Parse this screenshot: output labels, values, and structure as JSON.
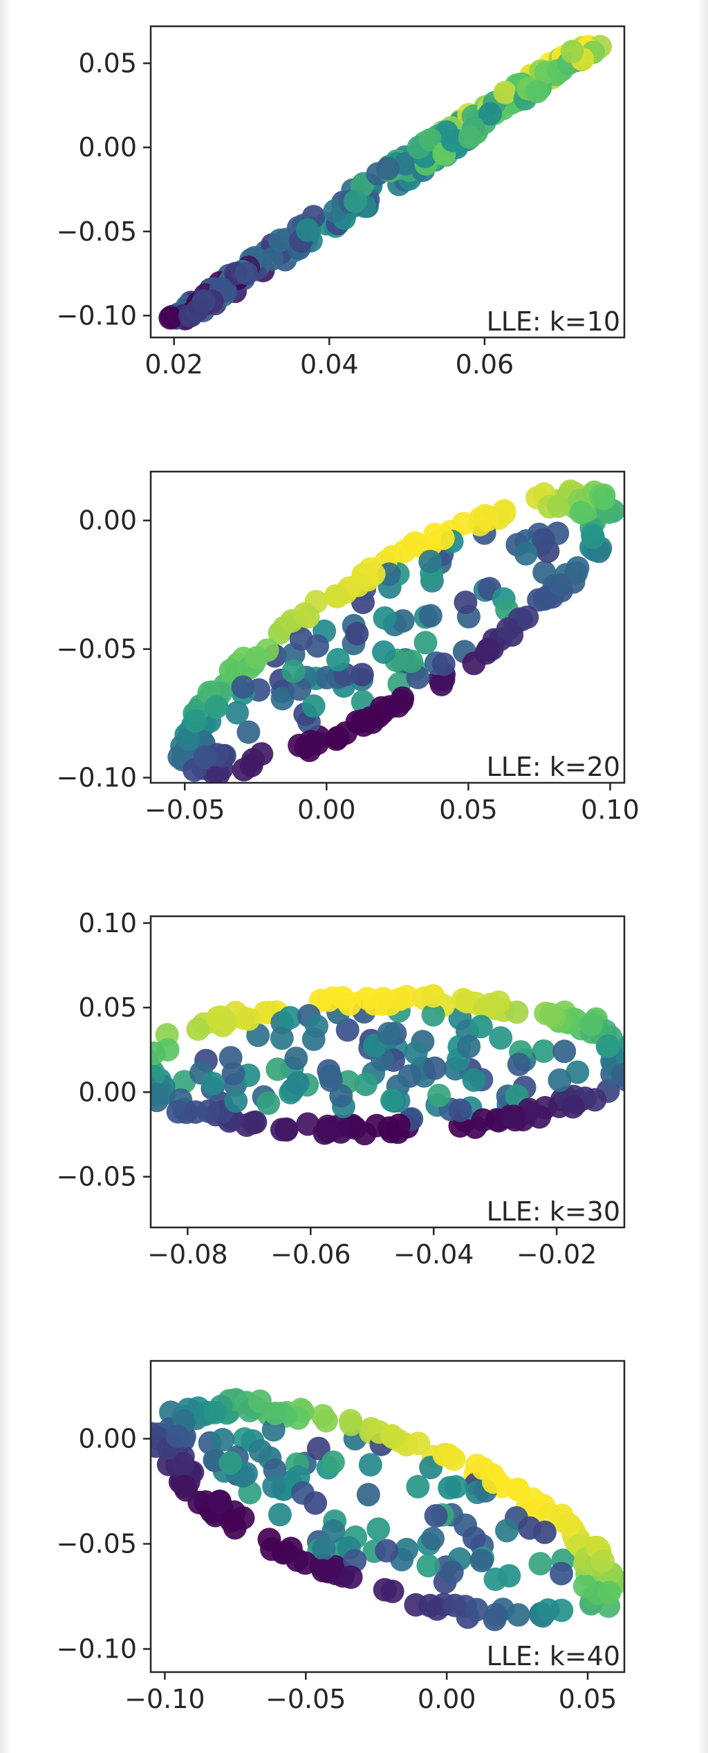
{
  "colors": {
    "viridis": [
      "#440154",
      "#3b528b",
      "#21918c",
      "#5ec962",
      "#fde725"
    ],
    "axis": "#262626",
    "background": "#ffffff"
  },
  "chart_data": [
    {
      "type": "scatter",
      "annotation": "LLE: k=10",
      "xlim": [
        0.017,
        0.078
      ],
      "ylim": [
        -0.113,
        0.072
      ],
      "xticks": [
        0.02,
        0.04,
        0.06
      ],
      "xtick_labels": [
        "0.02",
        "0.04",
        "0.06"
      ],
      "yticks": [
        -0.1,
        -0.05,
        0.0,
        0.05
      ],
      "ytick_labels": [
        "−0.10",
        "−0.05",
        "0.00",
        "0.05"
      ],
      "grid": false,
      "shape": {
        "kind": "band",
        "start": [
          0.02,
          -0.104
        ],
        "end": [
          0.0755,
          0.066
        ],
        "width": 0.0026,
        "n": 210
      }
    },
    {
      "type": "scatter",
      "annotation": "LLE: k=20",
      "xlim": [
        -0.062,
        0.105
      ],
      "ylim": [
        -0.102,
        0.019
      ],
      "xticks": [
        -0.05,
        0.0,
        0.05,
        0.1
      ],
      "xtick_labels": [
        "−0.05",
        "0.00",
        "0.05",
        "0.10"
      ],
      "yticks": [
        -0.1,
        -0.05,
        0.0
      ],
      "ytick_labels": [
        "−0.10",
        "−0.05",
        "0.00"
      ],
      "grid": false,
      "shape": {
        "kind": "ellipse",
        "center": [
          0.025,
          -0.043
        ],
        "semi_major": 0.092,
        "semi_minor": 0.026,
        "angle_deg": 34,
        "n": 260
      }
    },
    {
      "type": "scatter",
      "annotation": "LLE: k=30",
      "xlim": [
        -0.086,
        -0.009
      ],
      "ylim": [
        -0.08,
        0.104
      ],
      "xticks": [
        -0.08,
        -0.06,
        -0.04,
        -0.02
      ],
      "xtick_labels": [
        "−0.08",
        "−0.06",
        "−0.04",
        "−0.02"
      ],
      "yticks": [
        -0.05,
        0.0,
        0.05,
        0.1
      ],
      "ytick_labels": [
        "−0.05",
        "0.00",
        "0.05",
        "0.10"
      ],
      "grid": false,
      "shape": {
        "kind": "ellipse",
        "center": [
          -0.048,
          0.016
        ],
        "semi_major": 0.044,
        "semi_minor": 0.04,
        "angle_deg": 34,
        "n": 260
      }
    },
    {
      "type": "scatter",
      "annotation": "LLE: k=40",
      "xlim": [
        -0.105,
        0.063
      ],
      "ylim": [
        -0.111,
        0.037
      ],
      "xticks": [
        -0.1,
        -0.05,
        0.0,
        0.05
      ],
      "xtick_labels": [
        "−0.10",
        "−0.05",
        "0.00",
        "0.05"
      ],
      "yticks": [
        -0.1,
        -0.05,
        0.0
      ],
      "ytick_labels": [
        "−0.10",
        "−0.05",
        "0.00"
      ],
      "grid": false,
      "shape": {
        "kind": "ellipse",
        "center": [
          -0.022,
          -0.035
        ],
        "semi_major": 0.092,
        "semi_minor": 0.036,
        "angle_deg": -28,
        "n": 260
      }
    }
  ]
}
